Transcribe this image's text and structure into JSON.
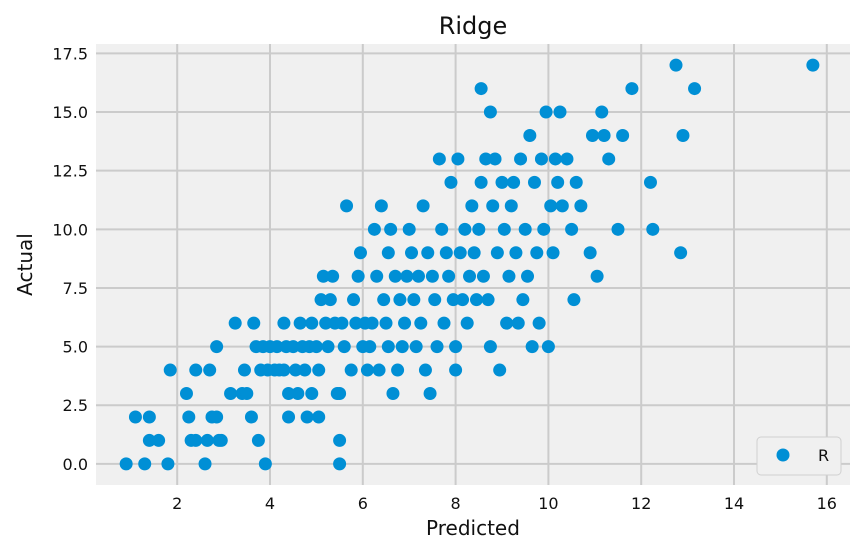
{
  "chart_data": {
    "type": "scatter",
    "title": "Ridge",
    "xlabel": "Predicted",
    "ylabel": "Actual",
    "xlim": [
      0.25,
      16.5
    ],
    "ylim": [
      -0.9,
      17.9
    ],
    "xticks": [
      2,
      4,
      6,
      8,
      10,
      12,
      14,
      16
    ],
    "xtick_labels": [
      "2",
      "4",
      "6",
      "8",
      "10",
      "12",
      "14",
      "16"
    ],
    "yticks": [
      0,
      2.5,
      5,
      7.5,
      10,
      12.5,
      15,
      17.5
    ],
    "ytick_labels": [
      "0.0",
      "2.5",
      "5.0",
      "7.5",
      "10.0",
      "12.5",
      "15.0",
      "17.5"
    ],
    "grid": true,
    "legend": {
      "position": "bottom-right",
      "entries": [
        "R"
      ]
    },
    "colors": {
      "marker": "#008fd5",
      "background": "#f0f0f0",
      "grid": "#cbcbcb"
    },
    "series": [
      {
        "name": "R",
        "points": [
          [
            0.9,
            0
          ],
          [
            1.1,
            2
          ],
          [
            1.3,
            0
          ],
          [
            1.4,
            2
          ],
          [
            1.4,
            1
          ],
          [
            1.6,
            1
          ],
          [
            1.8,
            0
          ],
          [
            1.85,
            4
          ],
          [
            2.2,
            3
          ],
          [
            2.25,
            2
          ],
          [
            2.3,
            1
          ],
          [
            2.4,
            1
          ],
          [
            2.4,
            4
          ],
          [
            2.6,
            0
          ],
          [
            2.65,
            1
          ],
          [
            2.7,
            4
          ],
          [
            2.75,
            2
          ],
          [
            2.85,
            2
          ],
          [
            2.9,
            1
          ],
          [
            2.85,
            5
          ],
          [
            2.95,
            1
          ],
          [
            3.15,
            3
          ],
          [
            3.25,
            6
          ],
          [
            3.4,
            3
          ],
          [
            3.45,
            4
          ],
          [
            3.5,
            3
          ],
          [
            3.6,
            2
          ],
          [
            3.65,
            6
          ],
          [
            3.7,
            5
          ],
          [
            3.75,
            1
          ],
          [
            3.8,
            4
          ],
          [
            3.85,
            5
          ],
          [
            3.9,
            0
          ],
          [
            3.95,
            4
          ],
          [
            4.0,
            5
          ],
          [
            4.1,
            4
          ],
          [
            4.15,
            5
          ],
          [
            4.2,
            4
          ],
          [
            4.3,
            4
          ],
          [
            4.3,
            6
          ],
          [
            4.35,
            5
          ],
          [
            4.4,
            3
          ],
          [
            4.4,
            2
          ],
          [
            4.5,
            5
          ],
          [
            4.55,
            4
          ],
          [
            4.6,
            3
          ],
          [
            4.65,
            6
          ],
          [
            4.7,
            5
          ],
          [
            4.75,
            4
          ],
          [
            4.8,
            2
          ],
          [
            4.85,
            5
          ],
          [
            4.9,
            3
          ],
          [
            4.9,
            6
          ],
          [
            5.0,
            5
          ],
          [
            5.05,
            4
          ],
          [
            5.05,
            2
          ],
          [
            5.1,
            7
          ],
          [
            5.15,
            8
          ],
          [
            5.2,
            6
          ],
          [
            5.25,
            5
          ],
          [
            5.3,
            7
          ],
          [
            5.35,
            8
          ],
          [
            5.4,
            6
          ],
          [
            5.45,
            3
          ],
          [
            5.5,
            3
          ],
          [
            5.5,
            1
          ],
          [
            5.5,
            0
          ],
          [
            5.55,
            6
          ],
          [
            5.6,
            5
          ],
          [
            5.65,
            11
          ],
          [
            5.75,
            4
          ],
          [
            5.8,
            7
          ],
          [
            5.85,
            6
          ],
          [
            5.9,
            8
          ],
          [
            5.95,
            9
          ],
          [
            6.0,
            5
          ],
          [
            6.05,
            6
          ],
          [
            6.1,
            4
          ],
          [
            6.15,
            5
          ],
          [
            6.2,
            6
          ],
          [
            6.25,
            10
          ],
          [
            6.3,
            8
          ],
          [
            6.35,
            4
          ],
          [
            6.4,
            11
          ],
          [
            6.45,
            7
          ],
          [
            6.5,
            6
          ],
          [
            6.55,
            5
          ],
          [
            6.55,
            9
          ],
          [
            6.6,
            10
          ],
          [
            6.65,
            3
          ],
          [
            6.7,
            8
          ],
          [
            6.75,
            4
          ],
          [
            6.8,
            7
          ],
          [
            6.85,
            5
          ],
          [
            6.9,
            6
          ],
          [
            6.95,
            8
          ],
          [
            7.0,
            10
          ],
          [
            7.05,
            9
          ],
          [
            7.1,
            7
          ],
          [
            7.15,
            5
          ],
          [
            7.2,
            8
          ],
          [
            7.25,
            6
          ],
          [
            7.3,
            11
          ],
          [
            7.35,
            4
          ],
          [
            7.4,
            9
          ],
          [
            7.45,
            3
          ],
          [
            7.5,
            8
          ],
          [
            7.55,
            7
          ],
          [
            7.6,
            5
          ],
          [
            7.65,
            13
          ],
          [
            7.7,
            10
          ],
          [
            7.75,
            6
          ],
          [
            7.8,
            9
          ],
          [
            7.85,
            8
          ],
          [
            7.9,
            12
          ],
          [
            7.95,
            7
          ],
          [
            8.0,
            5
          ],
          [
            8.0,
            4
          ],
          [
            8.05,
            13
          ],
          [
            8.1,
            9
          ],
          [
            8.15,
            7
          ],
          [
            8.2,
            10
          ],
          [
            8.25,
            6
          ],
          [
            8.3,
            8
          ],
          [
            8.35,
            11
          ],
          [
            8.4,
            9
          ],
          [
            8.45,
            7
          ],
          [
            8.5,
            10
          ],
          [
            8.55,
            12
          ],
          [
            8.55,
            16
          ],
          [
            8.6,
            8
          ],
          [
            8.65,
            13
          ],
          [
            8.7,
            7
          ],
          [
            8.75,
            15
          ],
          [
            8.75,
            5
          ],
          [
            8.8,
            11
          ],
          [
            8.85,
            13
          ],
          [
            8.9,
            9
          ],
          [
            8.95,
            4
          ],
          [
            9.0,
            12
          ],
          [
            9.05,
            10
          ],
          [
            9.1,
            6
          ],
          [
            9.15,
            8
          ],
          [
            9.2,
            11
          ],
          [
            9.25,
            12
          ],
          [
            9.3,
            9
          ],
          [
            9.35,
            6
          ],
          [
            9.4,
            13
          ],
          [
            9.45,
            7
          ],
          [
            9.5,
            10
          ],
          [
            9.55,
            8
          ],
          [
            9.6,
            14
          ],
          [
            9.65,
            5
          ],
          [
            9.7,
            12
          ],
          [
            9.75,
            9
          ],
          [
            9.8,
            6
          ],
          [
            9.85,
            13
          ],
          [
            9.9,
            10
          ],
          [
            9.95,
            15
          ],
          [
            10.0,
            5
          ],
          [
            10.05,
            11
          ],
          [
            10.1,
            9
          ],
          [
            10.15,
            13
          ],
          [
            10.2,
            12
          ],
          [
            10.25,
            15
          ],
          [
            10.3,
            11
          ],
          [
            10.4,
            13
          ],
          [
            10.5,
            10
          ],
          [
            10.55,
            7
          ],
          [
            10.6,
            12
          ],
          [
            10.7,
            11
          ],
          [
            10.9,
            9
          ],
          [
            10.95,
            14
          ],
          [
            11.05,
            8
          ],
          [
            11.15,
            15
          ],
          [
            11.2,
            14
          ],
          [
            11.3,
            13
          ],
          [
            11.5,
            10
          ],
          [
            11.6,
            14
          ],
          [
            11.8,
            16
          ],
          [
            12.2,
            12
          ],
          [
            12.25,
            10
          ],
          [
            12.75,
            17
          ],
          [
            12.85,
            9
          ],
          [
            12.9,
            14
          ],
          [
            13.15,
            16
          ],
          [
            15.7,
            17
          ]
        ]
      }
    ]
  }
}
